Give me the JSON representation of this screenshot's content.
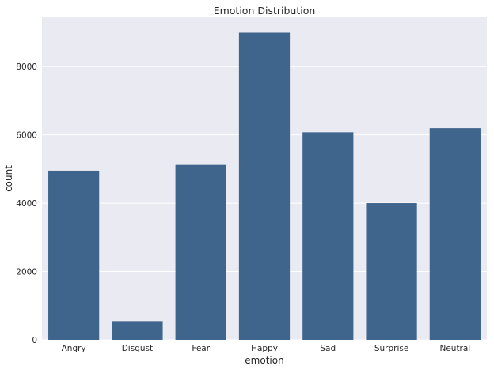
{
  "chart_data": {
    "type": "bar",
    "title": "Emotion Distribution",
    "xlabel": "emotion",
    "ylabel": "count",
    "categories": [
      "Angry",
      "Disgust",
      "Fear",
      "Happy",
      "Sad",
      "Surprise",
      "Neutral"
    ],
    "values": [
      4953,
      547,
      5121,
      8989,
      6077,
      4002,
      6198
    ],
    "ylim": [
      0,
      9440
    ],
    "yticks": [
      0,
      2000,
      4000,
      6000,
      8000
    ],
    "ytick_labels": [
      "0",
      "2000",
      "4000",
      "6000",
      "8000"
    ],
    "grid": true,
    "legend": "none",
    "colors": {
      "bar": "#3f658c",
      "background": "#eaeaf2",
      "grid": "#ffffff"
    }
  }
}
